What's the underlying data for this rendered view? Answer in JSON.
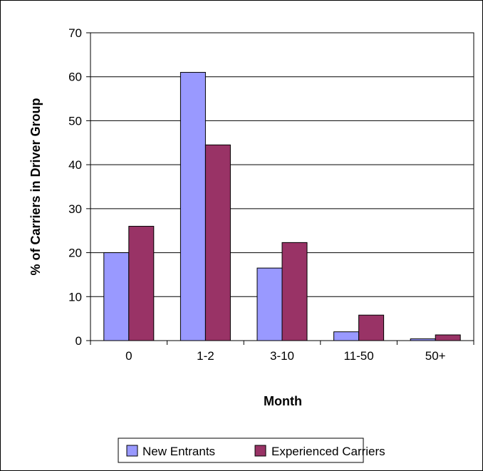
{
  "chart_data": {
    "type": "bar",
    "title": "",
    "xlabel": "Month",
    "ylabel": "% of Carriers in Driver Group",
    "categories": [
      "0",
      "1-2",
      "3-10",
      "11-50",
      "50+"
    ],
    "series": [
      {
        "name": "New Entrants",
        "color": "#9999ff",
        "values": [
          20,
          61,
          16.5,
          2,
          0.4
        ]
      },
      {
        "name": "Experienced Carriers",
        "color": "#993366",
        "values": [
          26,
          44.5,
          22.3,
          5.8,
          1.3
        ]
      }
    ],
    "ylim": [
      0,
      70
    ],
    "yticks": [
      0,
      10,
      20,
      30,
      40,
      50,
      60,
      70
    ],
    "grid": true,
    "legend_position": "bottom"
  }
}
